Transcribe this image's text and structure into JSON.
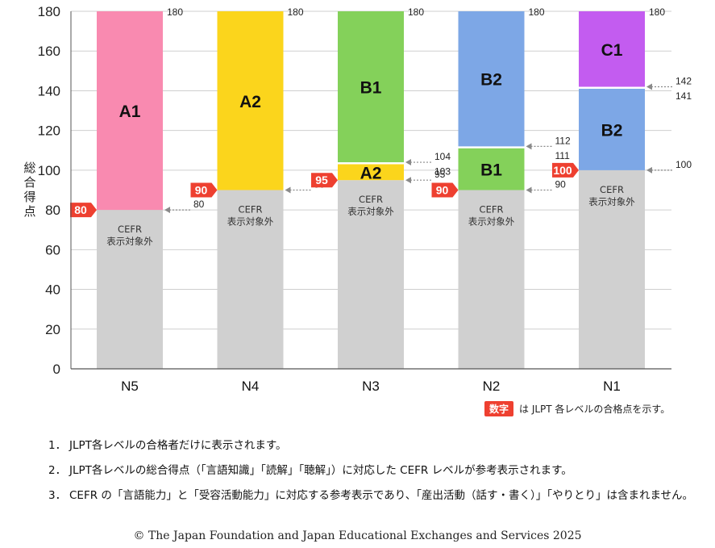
{
  "chart_data": {
    "type": "bar",
    "stacked": true,
    "ylim": [
      0,
      180
    ],
    "yticks": [
      0,
      20,
      40,
      60,
      80,
      100,
      120,
      140,
      160,
      180
    ],
    "ylabel": "総合得点",
    "grid": true,
    "categories": [
      "N5",
      "N4",
      "N3",
      "N2",
      "N1"
    ],
    "segments": [
      [
        {
          "from": 0,
          "to": 80,
          "label": "CEFR\n表示対象外",
          "color": "#d0d0d0"
        },
        {
          "from": 80,
          "to": 180,
          "label": "A1",
          "color": "#f98ab0"
        }
      ],
      [
        {
          "from": 0,
          "to": 90,
          "label": "CEFR\n表示対象外",
          "color": "#d0d0d0"
        },
        {
          "from": 90,
          "to": 180,
          "label": "A2",
          "color": "#fbd51c"
        }
      ],
      [
        {
          "from": 0,
          "to": 95,
          "label": "CEFR\n表示対象外",
          "color": "#d0d0d0"
        },
        {
          "from": 95,
          "to": 103,
          "label": "A2",
          "color": "#fbd51c"
        },
        {
          "from": 104,
          "to": 180,
          "label": "B1",
          "color": "#84d15a"
        }
      ],
      [
        {
          "from": 0,
          "to": 90,
          "label": "CEFR\n表示対象外",
          "color": "#d0d0d0"
        },
        {
          "from": 90,
          "to": 111,
          "label": "B1",
          "color": "#84d15a"
        },
        {
          "from": 112,
          "to": 180,
          "label": "B2",
          "color": "#7da7e6"
        }
      ],
      [
        {
          "from": 0,
          "to": 100,
          "label": "CEFR\n表示対象外",
          "color": "#d0d0d0"
        },
        {
          "from": 100,
          "to": 141,
          "label": "B2",
          "color": "#7da7e6"
        },
        {
          "from": 142,
          "to": 180,
          "label": "C1",
          "color": "#c35cf0"
        }
      ]
    ],
    "pass_marks": [
      80,
      90,
      95,
      90,
      100
    ],
    "boundary_labels": [
      [
        {
          "value": 180,
          "text": "180",
          "arrow": false
        },
        {
          "value": 80,
          "text": "80",
          "arrow": true
        }
      ],
      [
        {
          "value": 180,
          "text": "180",
          "arrow": false
        },
        {
          "value": 90,
          "text": "90",
          "arrow": true
        }
      ],
      [
        {
          "value": 180,
          "text": "180",
          "arrow": false
        },
        {
          "value": 104,
          "text": "104",
          "arrow": true
        },
        {
          "value": 103,
          "text": "103",
          "arrow": false
        },
        {
          "value": 95,
          "text": "95",
          "arrow": true
        }
      ],
      [
        {
          "value": 180,
          "text": "180",
          "arrow": false
        },
        {
          "value": 112,
          "text": "112",
          "arrow": true
        },
        {
          "value": 111,
          "text": "111",
          "arrow": false
        },
        {
          "value": 90,
          "text": "90",
          "arrow": true
        }
      ],
      [
        {
          "value": 180,
          "text": "180",
          "arrow": false
        },
        {
          "value": 142,
          "text": "142",
          "arrow": true
        },
        {
          "value": 141,
          "text": "141",
          "arrow": false
        },
        {
          "value": 100,
          "text": "100",
          "arrow": true
        }
      ]
    ],
    "legend": {
      "badge": "数字",
      "text": "は JLPT 各レベルの合格点を示す。",
      "placement": "bottom-right"
    },
    "colors": {
      "badge": "#ee4030",
      "grid": "#cfcfcf",
      "axis": "#555555"
    }
  },
  "notes": [
    {
      "num": "1．",
      "text": "JLPT各レベルの合格者だけに表示されます。"
    },
    {
      "num": "2．",
      "text": "JLPT各レベルの総合得点（「言語知識」「読解」「聴解」）に対応した CEFR レベルが参考表示されます。"
    },
    {
      "num": "3．",
      "text": "CEFR の「言語能力」と「受容活動能力」に対応する参考表示であり、「産出活動（話す・書く）」「やりとり」は含まれません。"
    }
  ],
  "copyright": "© The Japan Foundation and Japan Educational Exchanges and Services 2025"
}
